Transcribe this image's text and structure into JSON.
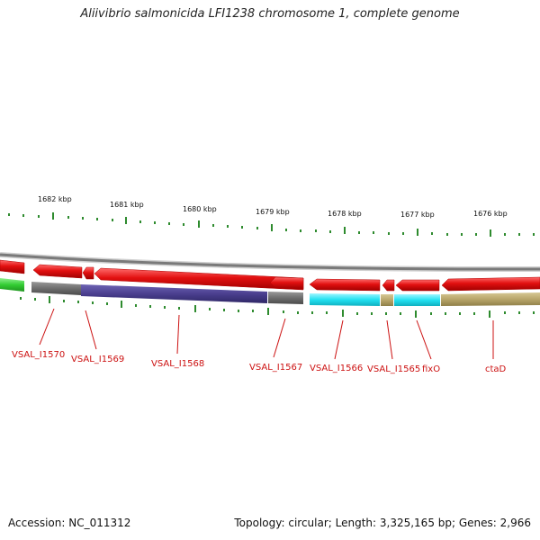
{
  "title": "Aliivibrio salmonicida LFI1238 chromosome 1, complete genome",
  "footer": {
    "accession": "Accession: NC_011312",
    "summary": "Topology: circular; Length: 3,325,165 bp; Genes: 2,966"
  },
  "kbp_labels": [
    "1682 kbp",
    "1681 kbp",
    "1680 kbp",
    "1679 kbp",
    "1678 kbp",
    "1677 kbp",
    "1676 kbp"
  ],
  "genes": [
    "VSAL_I1570",
    "VSAL_I1569",
    "VSAL_I1568",
    "VSAL_I1567",
    "VSAL_I1566",
    "VSAL_I1565",
    "fixO",
    "ctaD"
  ],
  "colors": {
    "cds": "#e21010",
    "backbone": "#8a8a8a",
    "cat_green": "#33cc33",
    "cat_gray": "#6e6e6e",
    "cat_purple": "#4a3f8f",
    "cat_cyan": "#22e0f0",
    "cat_tan": "#b8a56a",
    "tick": "#2e8b2e",
    "label": "#cc1111"
  }
}
